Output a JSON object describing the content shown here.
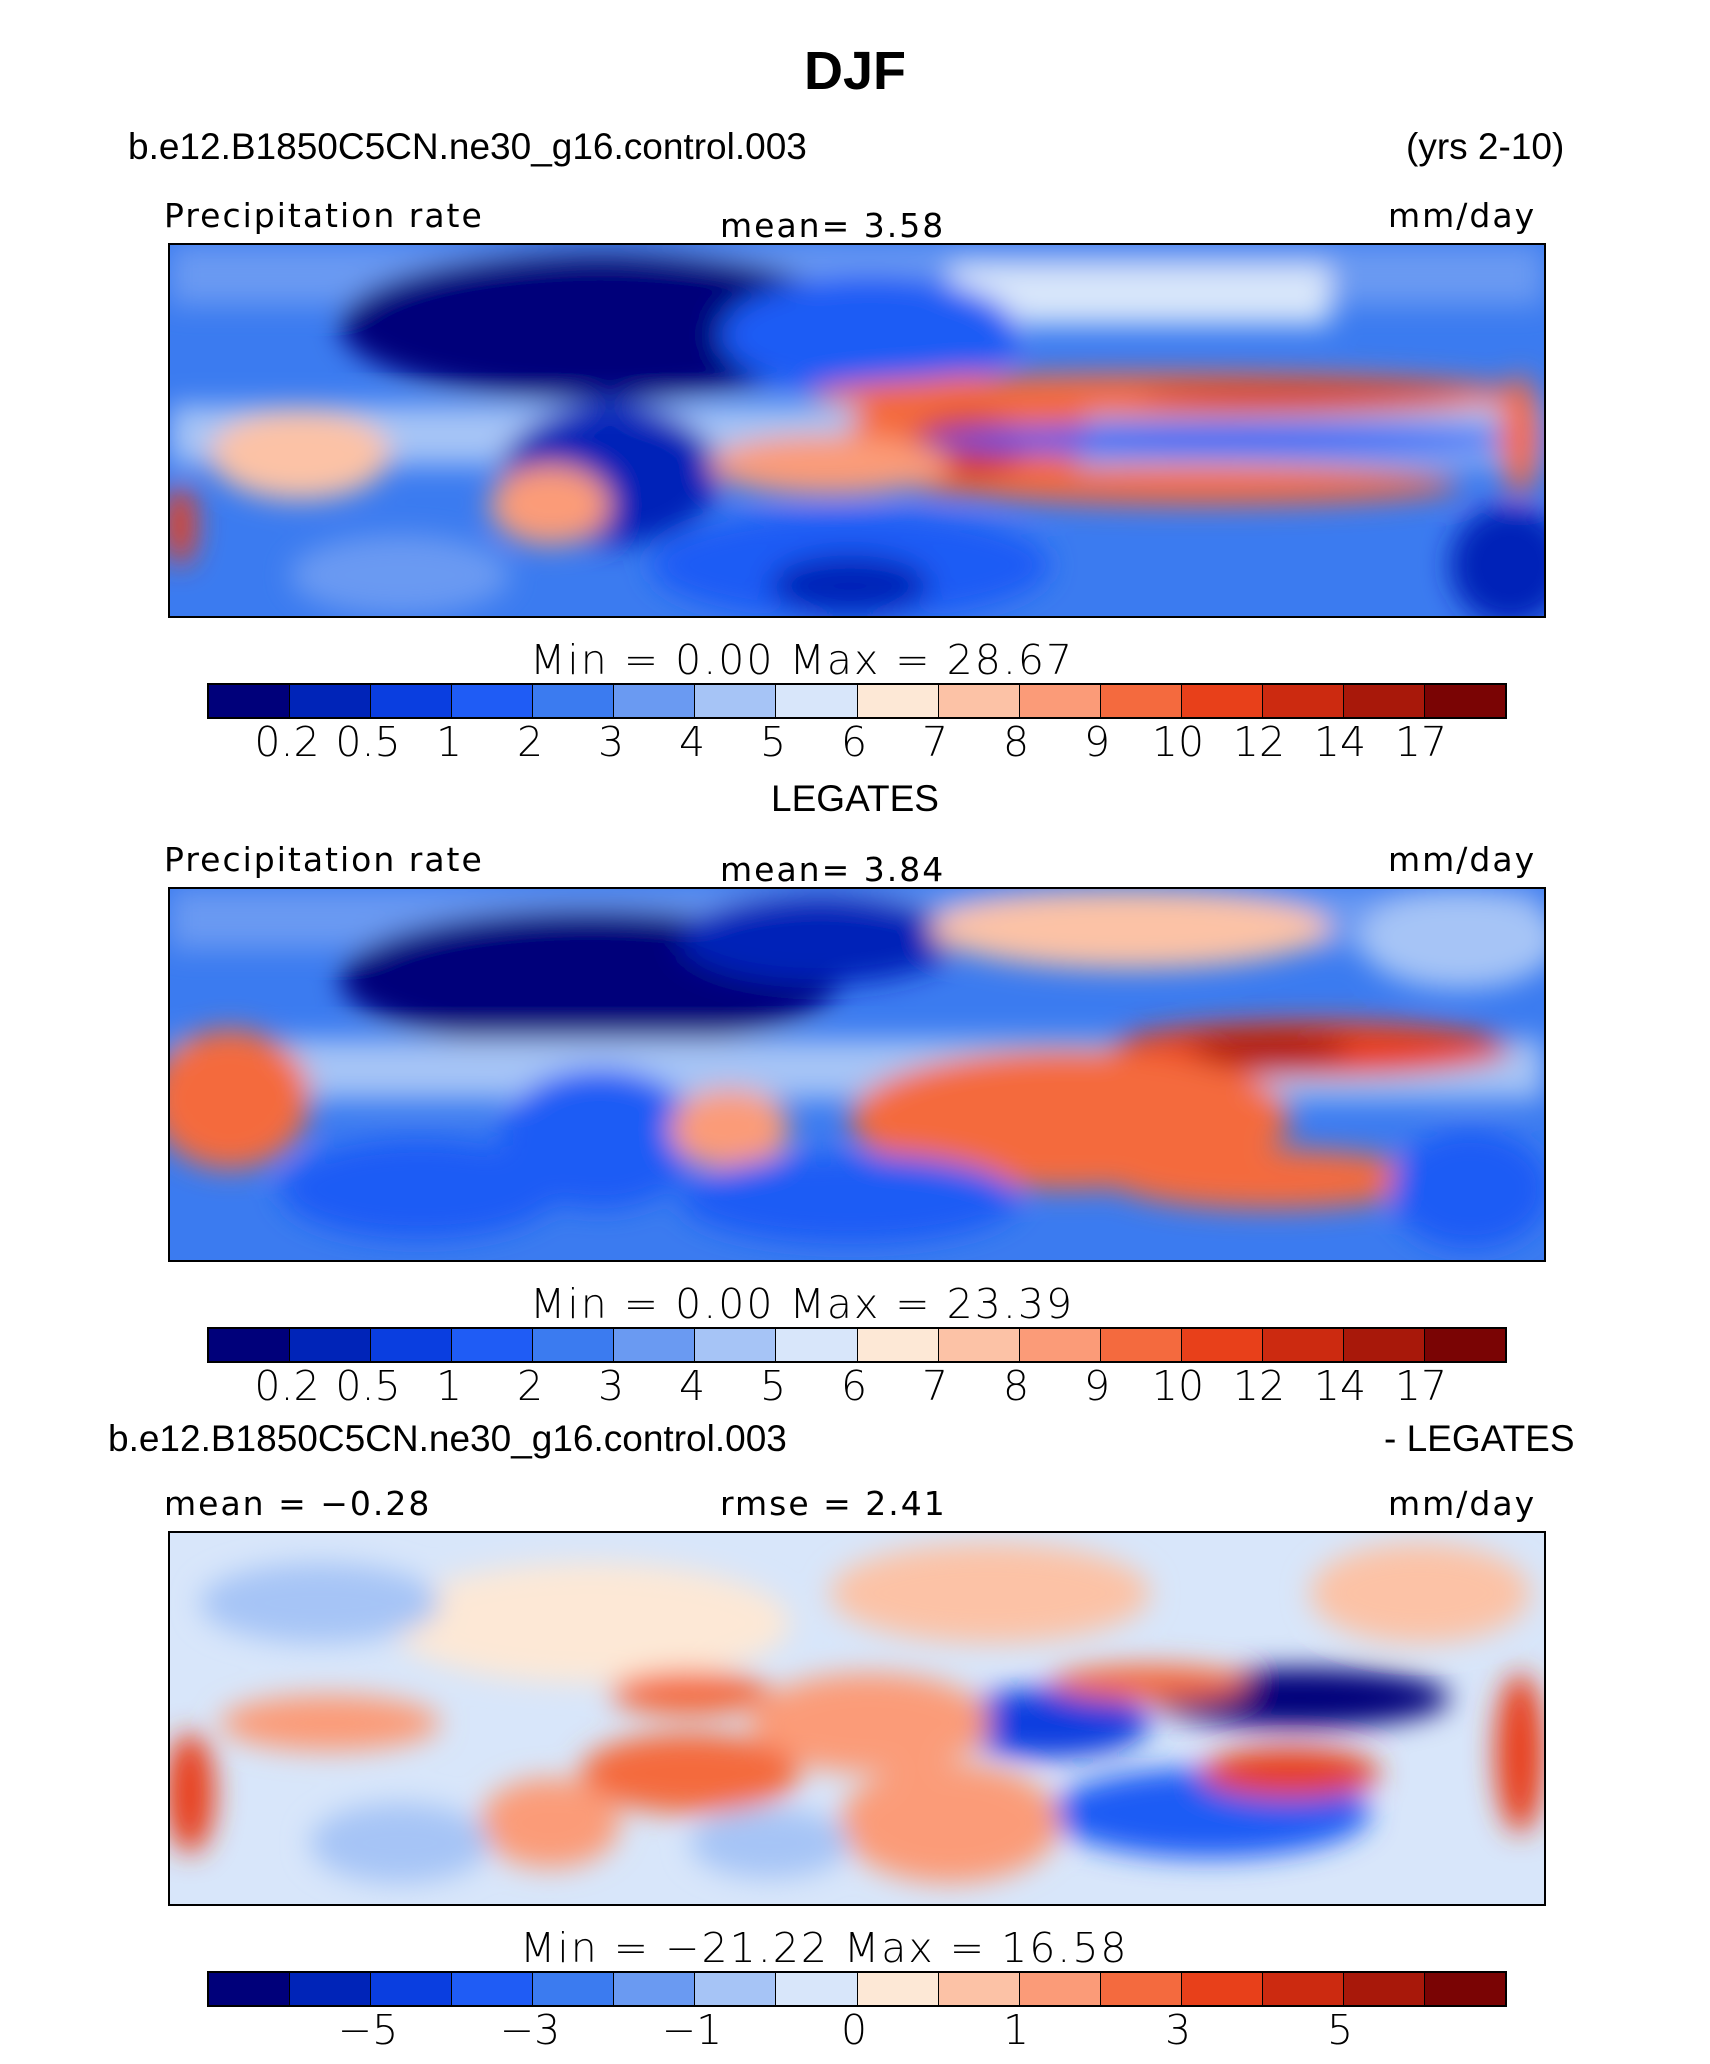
{
  "title": "DJF",
  "header": {
    "case": "b.e12.B1850C5CN.ne30_g16.control.003",
    "years": "(yrs 2-10)"
  },
  "panels": [
    {
      "left_label": "Precipitation rate",
      "center_label": "mean=    3.58",
      "right_label": "mm/day",
      "minmax": "Min  =     0.00  Max  =    28.67",
      "ticks": [
        "0.2",
        "0.5",
        "1",
        "2",
        "3",
        "4",
        "5",
        "6",
        "7",
        "8",
        "9",
        "10",
        "12",
        "14",
        "17"
      ]
    },
    {
      "title": "LEGATES",
      "left_label": "Precipitation rate",
      "center_label": "mean=    3.84",
      "right_label": "mm/day",
      "minmax": "Min  =     0.00  Max  =    23.39",
      "ticks": [
        "0.2",
        "0.5",
        "1",
        "2",
        "3",
        "4",
        "5",
        "6",
        "7",
        "8",
        "9",
        "10",
        "12",
        "14",
        "17"
      ]
    },
    {
      "title_left": "b.e12.B1850C5CN.ne30_g16.control.003",
      "title_right": "- LEGATES",
      "left_label": "mean  =   −0.28",
      "center_label": "rmse  =     2.41",
      "right_label": "mm/day",
      "minmax": "Min  =  −21.22  Max  =    16.58",
      "ticks": [
        "−5",
        "−3",
        "−1",
        "0",
        "1",
        "3",
        "5"
      ]
    }
  ],
  "colorbar_colors": [
    "#00007a",
    "#0024b8",
    "#0a3ee0",
    "#1f5cf5",
    "#3b7bf0",
    "#6a9af2",
    "#a6c4f6",
    "#d8e6fa",
    "#fde8d6",
    "#fcc2a6",
    "#fb9b78",
    "#f46a3e",
    "#e8401a",
    "#cc2a10",
    "#a8180a",
    "#7a0404"
  ]
}
